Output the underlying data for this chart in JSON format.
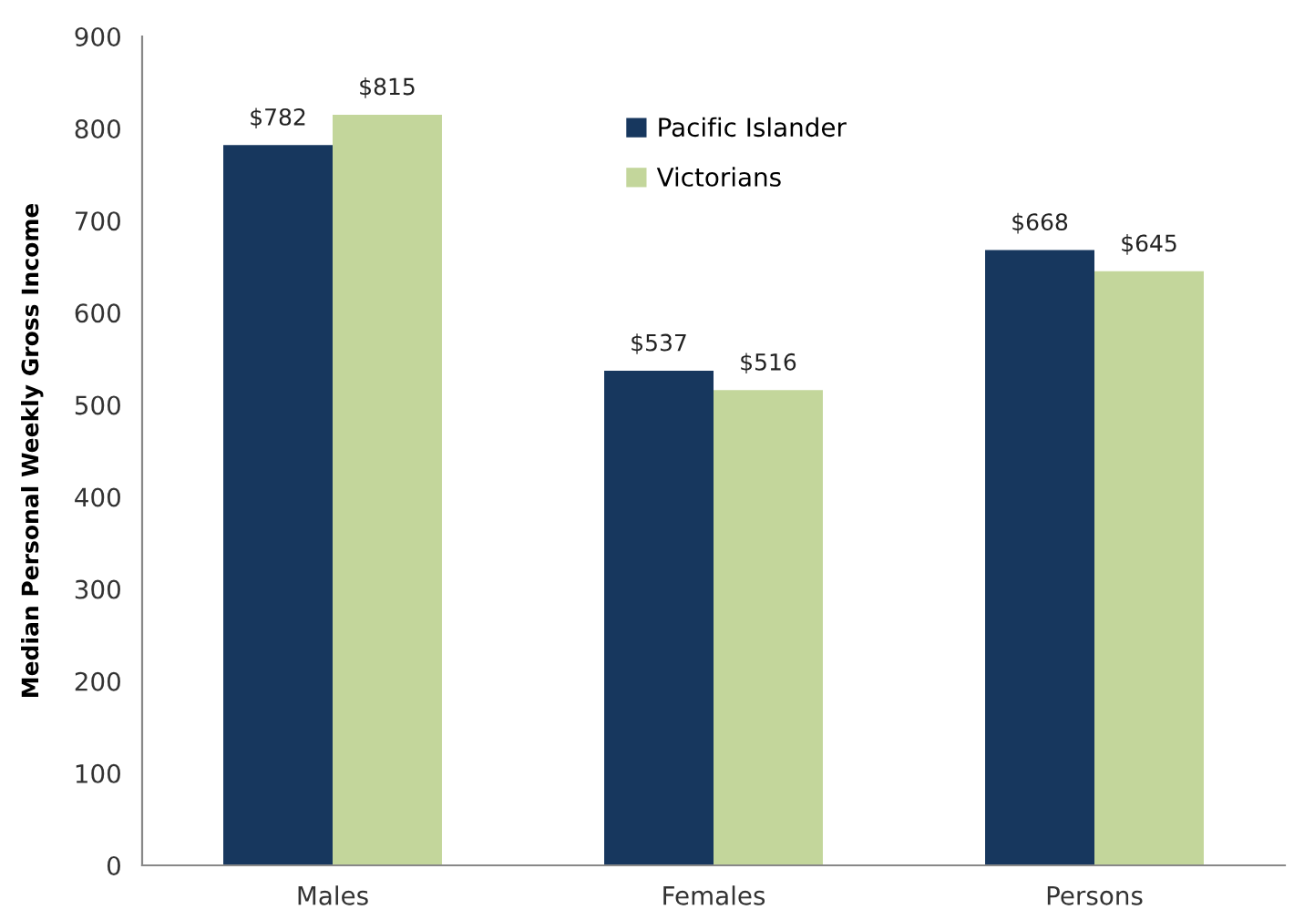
{
  "chart_data": {
    "type": "bar",
    "ylabel": "Median Personal Weekly Gross Income",
    "categories": [
      "Males",
      "Females",
      "Persons"
    ],
    "series": [
      {
        "name": "Pacific Islander",
        "color": "#17375e",
        "values": [
          782,
          537,
          668
        ],
        "value_labels": [
          "$782",
          "$537",
          "$668"
        ]
      },
      {
        "name": "Victorians",
        "color": "#c3d69b",
        "values": [
          815,
          516,
          645
        ],
        "value_labels": [
          "$815",
          "$516",
          "$645"
        ]
      }
    ],
    "ylim": [
      0,
      900
    ],
    "yticks": [
      0,
      100,
      200,
      300,
      400,
      500,
      600,
      700,
      800,
      900
    ],
    "grid": false,
    "legend": "top"
  }
}
